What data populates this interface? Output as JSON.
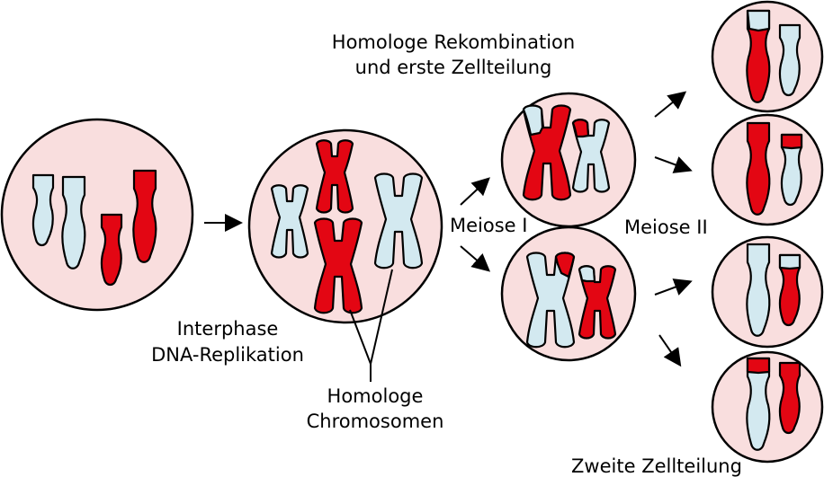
{
  "labels": {
    "recombination_line1": "Homologe Rekombination",
    "recombination_line2": "und erste Zellteilung",
    "interphase_line1": "Interphase",
    "interphase_line2": "DNA-Replikation",
    "homologous_line1": "Homologe",
    "homologous_line2": "Chromosomen",
    "meiosis1": "Meiose I",
    "meiosis2": "Meiose II",
    "second_division": "Zweite Zellteilung"
  },
  "colors": {
    "cell_fill": "#f9dede",
    "maternal_red": "#e30613",
    "paternal_blue": "#d3e9f0"
  }
}
